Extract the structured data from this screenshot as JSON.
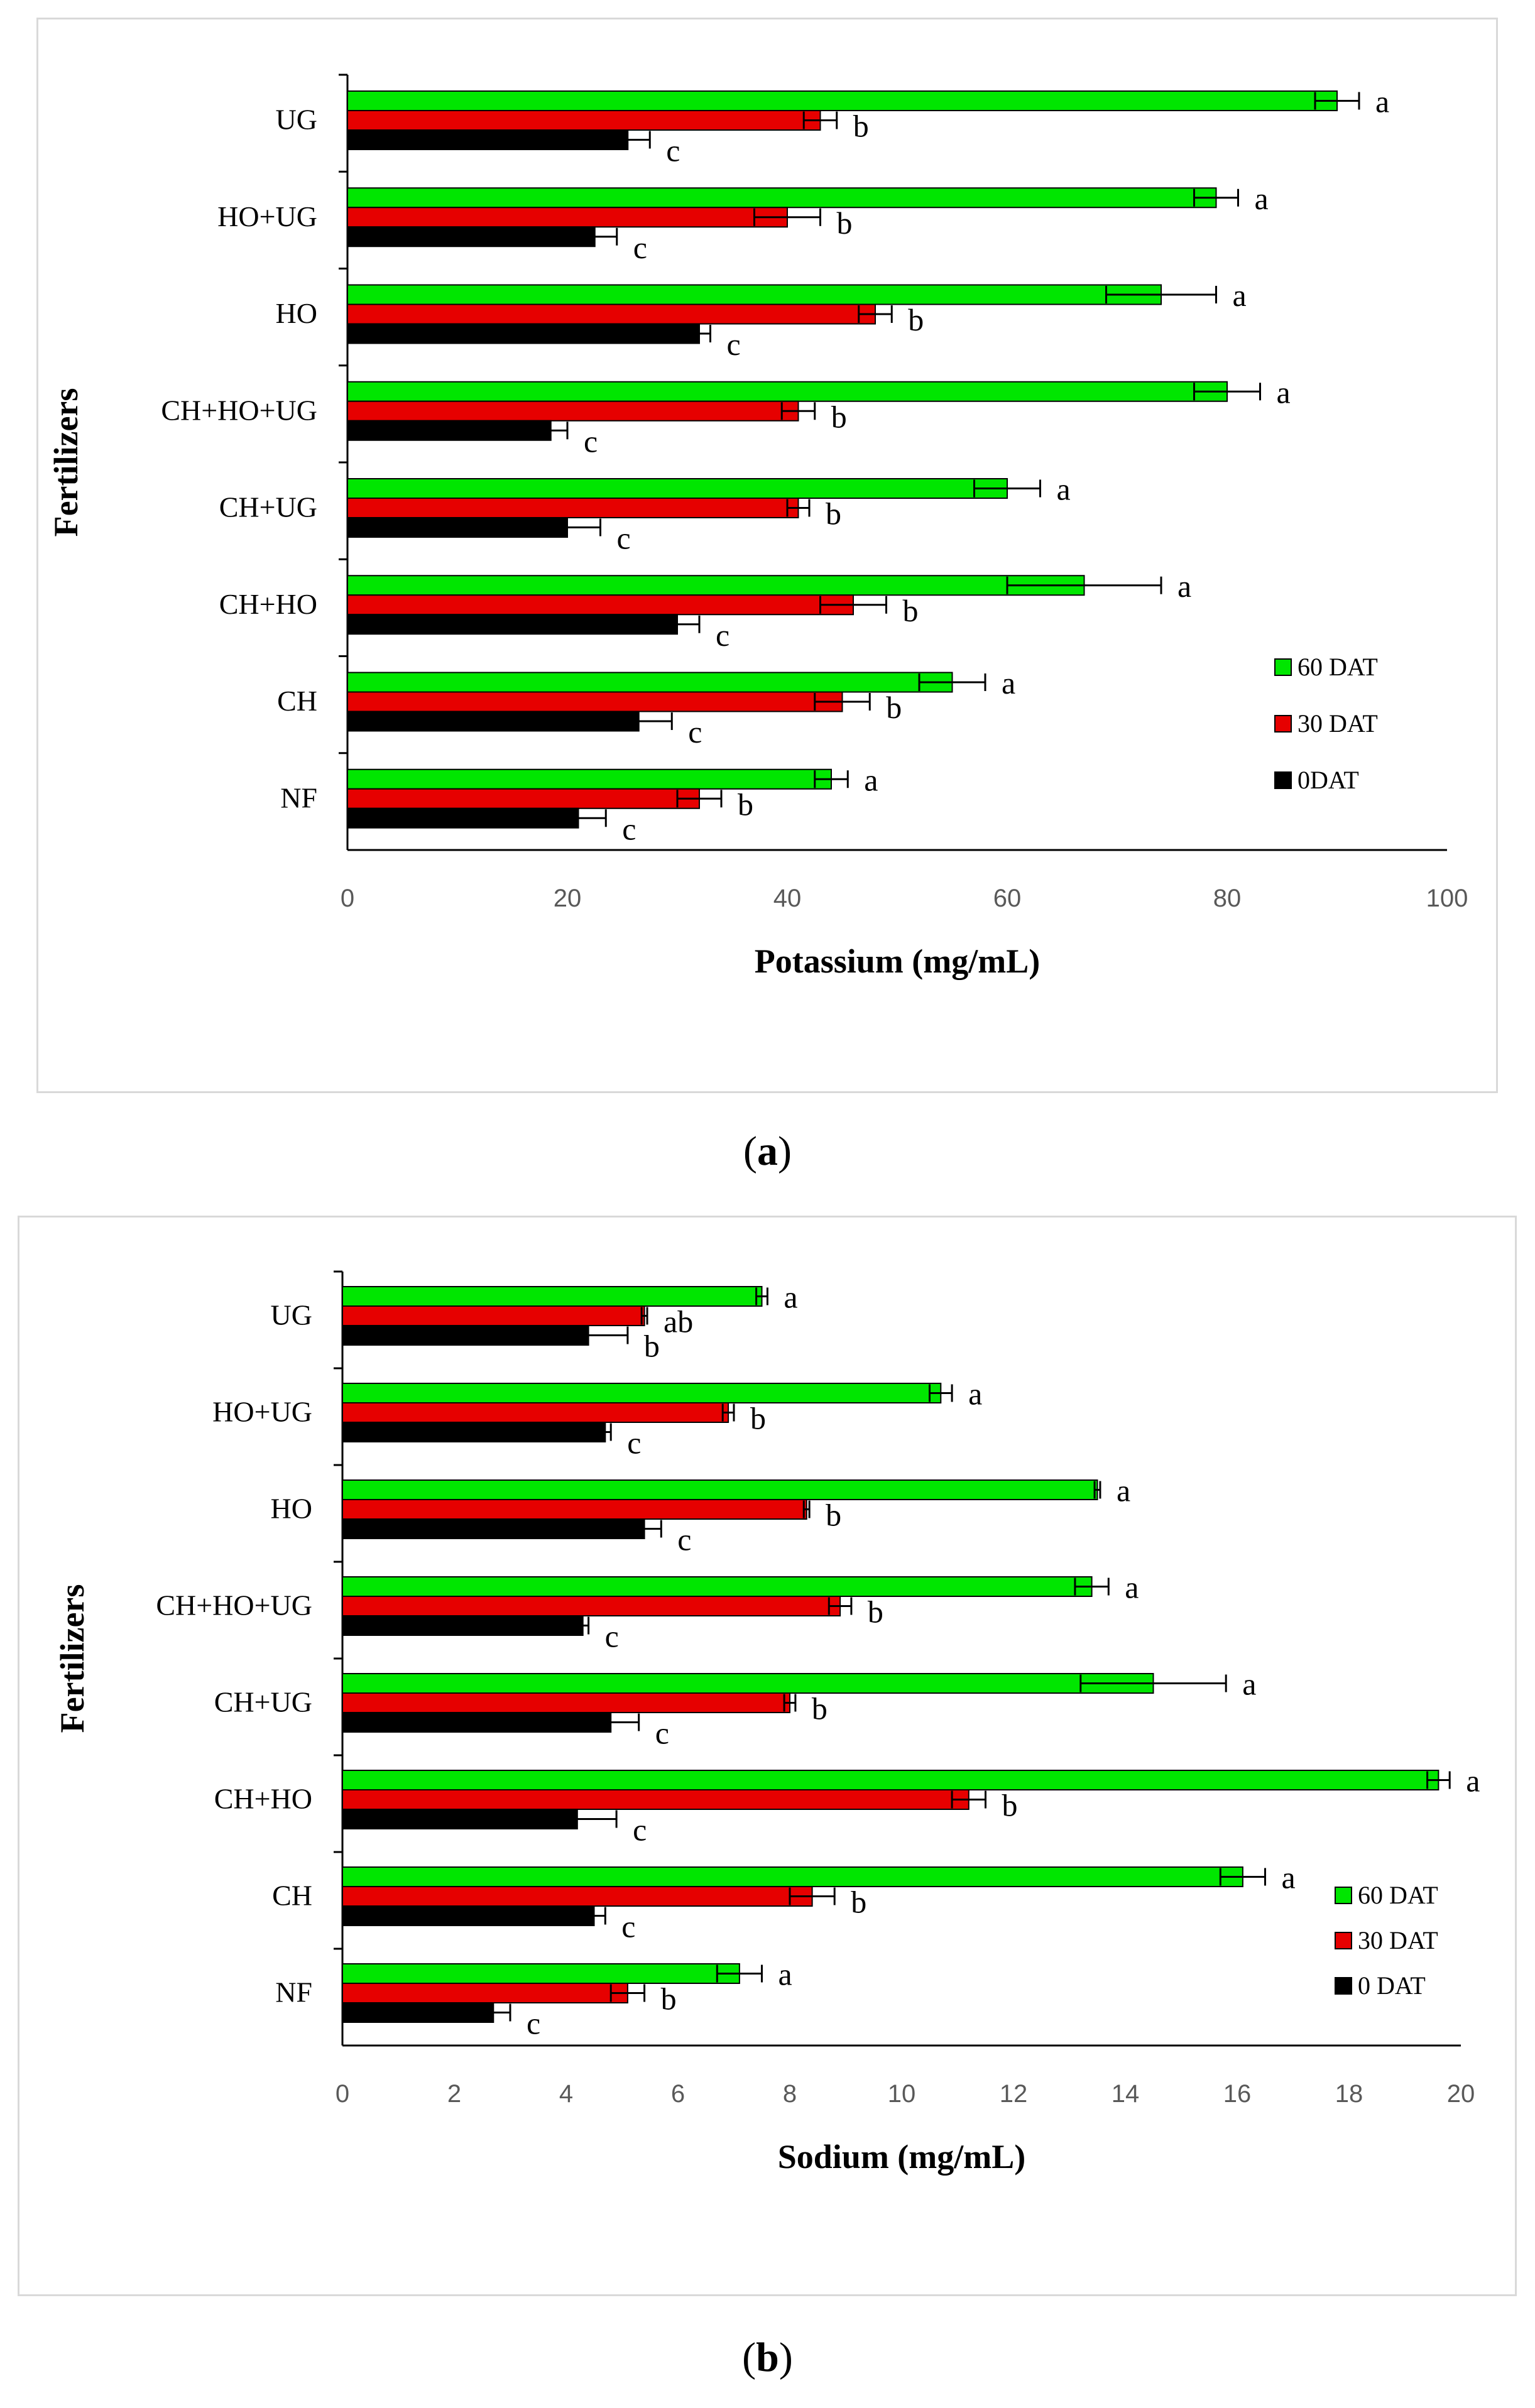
{
  "figures": {
    "a": {
      "caption_letter": "a"
    },
    "b": {
      "caption_letter": "b"
    }
  },
  "colors": {
    "s60": "#00e600",
    "s30": "#e60000",
    "s0": "#000000",
    "axis": "#000000",
    "err": "#000000"
  },
  "chart_data": [
    {
      "type": "bar",
      "orientation": "horizontal",
      "title": "",
      "xlabel": "Potassium (mg/mL)",
      "ylabel": "Fertilizers",
      "xlim": [
        0,
        100
      ],
      "xticks": [
        0,
        20,
        40,
        60,
        80,
        100
      ],
      "grid": false,
      "legend_position": "bottom-right",
      "categories": [
        "UG",
        "HO+UG",
        "HO",
        "CH+HO+UG",
        "CH+UG",
        "CH+HO",
        "CH",
        "NF"
      ],
      "series": [
        {
          "name": "60 DAT",
          "legend": "60 DAT",
          "color_key": "s60",
          "values": [
            90,
            79,
            74,
            80,
            60,
            67,
            55,
            44
          ],
          "errors": [
            2,
            2,
            5,
            3,
            3,
            7,
            3,
            1.5
          ],
          "labels": [
            "a",
            "a",
            "a",
            "a",
            "a",
            "a",
            "a",
            "a"
          ]
        },
        {
          "name": "30 DAT",
          "legend": "30 DAT",
          "color_key": "s30",
          "values": [
            43,
            40,
            48,
            41,
            41,
            46,
            45,
            32
          ],
          "errors": [
            1.5,
            3,
            1.5,
            1.5,
            1,
            3,
            2.5,
            2
          ],
          "labels": [
            "b",
            "b",
            "b",
            "b",
            "b",
            "b",
            "b",
            "b"
          ]
        },
        {
          "name": "0 DAT",
          "legend": "0DAT",
          "color_key": "s0",
          "values": [
            25.5,
            22.5,
            32,
            18.5,
            20,
            30,
            26.5,
            21
          ],
          "errors": [
            2,
            2,
            1,
            1.5,
            3,
            2,
            3,
            2.5
          ],
          "labels": [
            "c",
            "c",
            "c",
            "c",
            "c",
            "c",
            "c",
            "c"
          ]
        }
      ]
    },
    {
      "type": "bar",
      "orientation": "horizontal",
      "title": "",
      "xlabel": "Sodium (mg/mL)",
      "ylabel": "Fertilizers",
      "xlim": [
        0,
        20
      ],
      "xticks": [
        0,
        2,
        4,
        6,
        8,
        10,
        12,
        14,
        16,
        18,
        20
      ],
      "grid": false,
      "legend_position": "bottom-right",
      "categories": [
        "UG",
        "HO+UG",
        "HO",
        "CH+HO+UG",
        "CH+UG",
        "CH+HO",
        "CH",
        "NF"
      ],
      "series": [
        {
          "name": "60 DAT",
          "legend": "60 DAT",
          "color_key": "s60",
          "values": [
            7.5,
            10.7,
            13.5,
            13.4,
            14.5,
            19.6,
            16.1,
            7.1
          ],
          "errors": [
            0.1,
            0.2,
            0.05,
            0.3,
            1.3,
            0.2,
            0.4,
            0.4
          ],
          "labels": [
            "a",
            "a",
            "a",
            "a",
            "a",
            "a",
            "a",
            "a"
          ]
        },
        {
          "name": "30 DAT",
          "legend": "30 DAT",
          "color_key": "s30",
          "values": [
            5.4,
            6.9,
            8.3,
            8.9,
            8.0,
            11.2,
            8.4,
            5.1
          ],
          "errors": [
            0.05,
            0.1,
            0.05,
            0.2,
            0.1,
            0.3,
            0.4,
            0.3
          ],
          "labels": [
            "ab",
            "b",
            "b",
            "b",
            "b",
            "b",
            "b",
            "b"
          ]
        },
        {
          "name": "0 DAT",
          "legend": "0 DAT",
          "color_key": "s0",
          "values": [
            4.4,
            4.7,
            5.4,
            4.3,
            4.8,
            4.2,
            4.5,
            2.7
          ],
          "errors": [
            0.7,
            0.1,
            0.3,
            0.1,
            0.5,
            0.7,
            0.2,
            0.3
          ],
          "labels": [
            "b",
            "c",
            "c",
            "c",
            "c",
            "c",
            "c",
            "c"
          ]
        }
      ]
    }
  ]
}
